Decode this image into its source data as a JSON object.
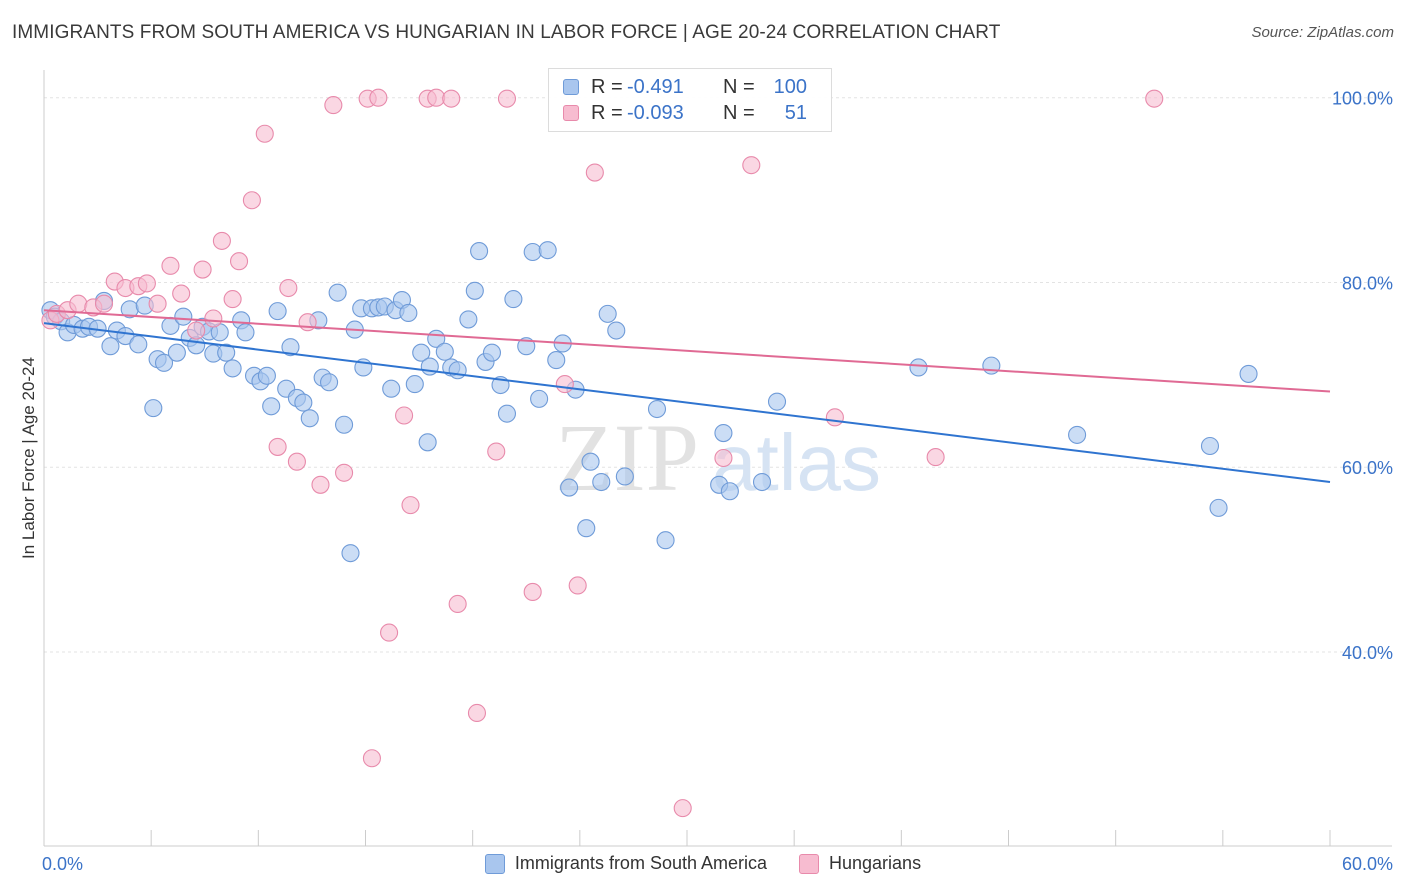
{
  "title": "IMMIGRANTS FROM SOUTH AMERICA VS HUNGARIAN IN LABOR FORCE | AGE 20-24 CORRELATION CHART",
  "source": "Source: ZipAtlas.com",
  "stats": [
    {
      "r_label": "R =",
      "r_value": "-0.491",
      "n_label": "N =",
      "n_value": "100",
      "color": "#a9c6ee",
      "stroke": "#6f9bd8"
    },
    {
      "r_label": "R =",
      "r_value": "-0.093",
      "n_label": "N =",
      "n_value": "51",
      "color": "#f7bcd0",
      "stroke": "#e88aab"
    }
  ],
  "legend": [
    {
      "label": "Immigrants from South America",
      "color": "#a9c6ee",
      "stroke": "#6f9bd8"
    },
    {
      "label": "Hungarians",
      "color": "#f7bcd0",
      "stroke": "#e88aab"
    }
  ],
  "chart_data": {
    "type": "scatter",
    "ylabel": "In Labor Force | Age 20-24",
    "xlim": [
      0,
      60
    ],
    "ylim": [
      19,
      103
    ],
    "x_ticks": [
      "0.0%",
      "60.0%"
    ],
    "y_ticks": [
      {
        "value": 40,
        "label": "40.0%"
      },
      {
        "value": 60,
        "label": "60.0%"
      },
      {
        "value": 80,
        "label": "80.0%"
      },
      {
        "value": 100,
        "label": "100.0%"
      }
    ],
    "watermark": {
      "zip": "ZIP",
      "atlas": "atlas"
    },
    "series": [
      {
        "name": "Immigrants from South America",
        "color": "#a9c6ee",
        "stroke": "#6f9bd8",
        "line_color": "#2f74d0",
        "trend": {
          "x": [
            0,
            60
          ],
          "y": [
            75.6,
            58.4
          ]
        },
        "points": [
          [
            0.3,
            77.0
          ],
          [
            0.5,
            76.3
          ],
          [
            0.8,
            75.8
          ],
          [
            1.1,
            74.6
          ],
          [
            1.4,
            75.4
          ],
          [
            1.8,
            75.0
          ],
          [
            2.1,
            75.2
          ],
          [
            2.5,
            75.0
          ],
          [
            2.8,
            78.0
          ],
          [
            3.1,
            73.1
          ],
          [
            3.4,
            74.8
          ],
          [
            3.8,
            74.2
          ],
          [
            4.0,
            77.1
          ],
          [
            4.4,
            73.3
          ],
          [
            4.7,
            77.5
          ],
          [
            5.1,
            66.4
          ],
          [
            5.3,
            71.7
          ],
          [
            5.6,
            71.3
          ],
          [
            5.9,
            75.3
          ],
          [
            6.2,
            72.4
          ],
          [
            6.5,
            76.3
          ],
          [
            6.8,
            74.0
          ],
          [
            7.1,
            73.2
          ],
          [
            7.4,
            75.2
          ],
          [
            7.7,
            74.7
          ],
          [
            7.9,
            72.3
          ],
          [
            8.2,
            74.6
          ],
          [
            8.5,
            72.4
          ],
          [
            8.8,
            70.7
          ],
          [
            9.2,
            75.9
          ],
          [
            9.4,
            74.6
          ],
          [
            9.8,
            69.9
          ],
          [
            10.1,
            69.3
          ],
          [
            10.4,
            69.9
          ],
          [
            10.6,
            66.6
          ],
          [
            10.9,
            76.9
          ],
          [
            11.3,
            68.5
          ],
          [
            11.5,
            73.0
          ],
          [
            11.8,
            67.5
          ],
          [
            12.1,
            67.0
          ],
          [
            12.4,
            65.3
          ],
          [
            12.8,
            75.9
          ],
          [
            13.0,
            69.7
          ],
          [
            13.3,
            69.2
          ],
          [
            13.7,
            78.9
          ],
          [
            14.0,
            64.6
          ],
          [
            14.3,
            50.7
          ],
          [
            14.5,
            74.9
          ],
          [
            14.8,
            77.2
          ],
          [
            14.9,
            70.8
          ],
          [
            15.3,
            77.2
          ],
          [
            15.6,
            77.3
          ],
          [
            15.9,
            77.4
          ],
          [
            16.2,
            68.5
          ],
          [
            16.4,
            77.0
          ],
          [
            16.7,
            78.1
          ],
          [
            17.0,
            76.7
          ],
          [
            17.3,
            69.0
          ],
          [
            17.6,
            72.4
          ],
          [
            17.9,
            62.7
          ],
          [
            18.0,
            70.9
          ],
          [
            18.3,
            73.9
          ],
          [
            18.7,
            72.5
          ],
          [
            19.0,
            70.8
          ],
          [
            19.3,
            70.5
          ],
          [
            19.8,
            76.0
          ],
          [
            20.1,
            79.1
          ],
          [
            20.3,
            83.4
          ],
          [
            20.6,
            71.4
          ],
          [
            20.9,
            72.4
          ],
          [
            21.3,
            68.9
          ],
          [
            21.6,
            65.8
          ],
          [
            21.9,
            78.2
          ],
          [
            22.5,
            73.1
          ],
          [
            22.8,
            83.3
          ],
          [
            23.1,
            67.4
          ],
          [
            23.5,
            83.5
          ],
          [
            23.9,
            71.6
          ],
          [
            24.2,
            73.4
          ],
          [
            24.5,
            57.8
          ],
          [
            24.8,
            68.4
          ],
          [
            25.3,
            53.4
          ],
          [
            25.5,
            60.6
          ],
          [
            26.0,
            58.4
          ],
          [
            26.3,
            76.6
          ],
          [
            26.7,
            74.8
          ],
          [
            27.1,
            59.0
          ],
          [
            28.6,
            66.3
          ],
          [
            29.0,
            52.1
          ],
          [
            31.5,
            58.1
          ],
          [
            31.7,
            63.7
          ],
          [
            32.0,
            57.4
          ],
          [
            33.5,
            58.4
          ],
          [
            34.2,
            67.1
          ],
          [
            40.8,
            70.8
          ],
          [
            44.2,
            71.0
          ],
          [
            48.2,
            63.5
          ],
          [
            54.4,
            62.3
          ],
          [
            54.8,
            55.6
          ],
          [
            56.2,
            70.1
          ]
        ]
      },
      {
        "name": "Hungarians",
        "color": "#f7bcd0",
        "stroke": "#e88aab",
        "line_color": "#e06a94",
        "trend": {
          "x": [
            0,
            60
          ],
          "y": [
            77.0,
            68.2
          ]
        },
        "points": [
          [
            0.3,
            75.9
          ],
          [
            0.6,
            76.6
          ],
          [
            1.1,
            77.0
          ],
          [
            1.6,
            77.7
          ],
          [
            2.3,
            77.3
          ],
          [
            2.8,
            77.7
          ],
          [
            3.3,
            80.1
          ],
          [
            3.8,
            79.4
          ],
          [
            4.4,
            79.6
          ],
          [
            4.8,
            79.9
          ],
          [
            5.3,
            77.7
          ],
          [
            5.9,
            81.8
          ],
          [
            6.4,
            78.8
          ],
          [
            7.1,
            74.8
          ],
          [
            7.4,
            81.4
          ],
          [
            7.9,
            76.1
          ],
          [
            8.3,
            84.5
          ],
          [
            8.8,
            78.2
          ],
          [
            9.1,
            82.3
          ],
          [
            9.7,
            88.9
          ],
          [
            10.3,
            96.1
          ],
          [
            10.9,
            62.2
          ],
          [
            11.4,
            79.4
          ],
          [
            11.8,
            60.6
          ],
          [
            12.3,
            75.7
          ],
          [
            12.9,
            58.1
          ],
          [
            13.5,
            99.2
          ],
          [
            14.0,
            59.4
          ],
          [
            15.1,
            99.9
          ],
          [
            15.3,
            28.5
          ],
          [
            15.6,
            100.0
          ],
          [
            16.1,
            42.1
          ],
          [
            16.8,
            65.6
          ],
          [
            17.1,
            55.9
          ],
          [
            17.9,
            99.9
          ],
          [
            18.3,
            100.0
          ],
          [
            19.0,
            99.9
          ],
          [
            19.3,
            45.2
          ],
          [
            20.2,
            33.4
          ],
          [
            21.1,
            61.7
          ],
          [
            21.6,
            99.9
          ],
          [
            22.8,
            46.5
          ],
          [
            24.3,
            69.0
          ],
          [
            24.9,
            47.2
          ],
          [
            25.7,
            91.9
          ],
          [
            29.8,
            23.1
          ],
          [
            31.7,
            61.0
          ],
          [
            33.0,
            92.7
          ],
          [
            36.9,
            65.4
          ],
          [
            41.6,
            61.1
          ],
          [
            51.8,
            99.9
          ]
        ]
      }
    ]
  }
}
